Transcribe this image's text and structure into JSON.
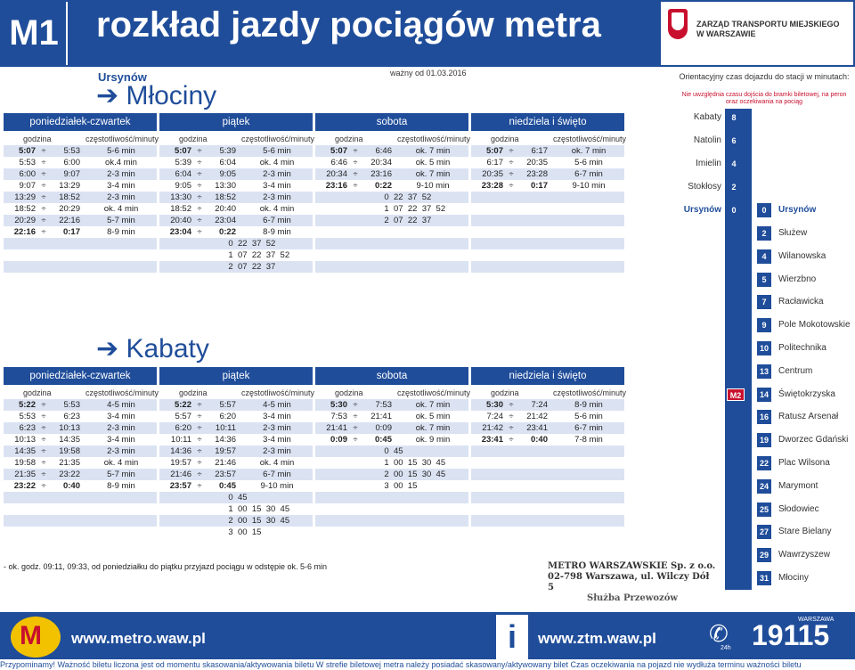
{
  "header": {
    "line": "M1",
    "title": "rozkład jazdy pociągów metra",
    "ztm_name": "ZARZĄD TRANSPORTU MIEJSKIEGO W WARSZAWIE"
  },
  "station": "Ursynów",
  "valid_from": "ważny od 01.03.2016",
  "dir1": {
    "arrow_label": "➔ Młociny",
    "cols": [
      {
        "name": "poniedziałek-czwartek",
        "sub": [
          "godzina",
          "częstotliwość/minuty"
        ],
        "rows": [
          [
            "5:07",
            "5:53",
            "5-6 min"
          ],
          [
            "5:53",
            "6:00",
            "ok.4 min"
          ],
          [
            "6:00",
            "9:07",
            "2-3 min"
          ],
          [
            "9:07",
            "13:29",
            "3-4 min"
          ],
          [
            "13:29",
            "18:52",
            "2-3 min"
          ],
          [
            "18:52",
            "20:29",
            "ok. 4 min"
          ],
          [
            "20:29",
            "22:16",
            "5-7 min"
          ],
          [
            "22:16",
            "0:17",
            "8-9 min"
          ]
        ]
      },
      {
        "name": "piątek",
        "sub": [
          "godzina",
          "częstotliwość/minuty"
        ],
        "rows": [
          [
            "5:07",
            "5:39",
            "5-6 min"
          ],
          [
            "5:39",
            "6:04",
            "ok. 4 min"
          ],
          [
            "6:04",
            "9:05",
            "2-3 min"
          ],
          [
            "9:05",
            "13:30",
            "3-4 min"
          ],
          [
            "13:30",
            "18:52",
            "2-3 min"
          ],
          [
            "18:52",
            "20:40",
            "ok. 4 min"
          ],
          [
            "20:40",
            "23:04",
            "6-7 min"
          ],
          [
            "23:04",
            "0:22",
            "8-9 min"
          ]
        ],
        "extra": [
          [
            "0",
            "22  37  52"
          ],
          [
            "1",
            "07  22  37  52"
          ],
          [
            "2",
            "07  22  37"
          ]
        ]
      },
      {
        "name": "sobota",
        "sub": [
          "godzina",
          "częstotliwość/minuty"
        ],
        "rows": [
          [
            "5:07",
            "6:46",
            "ok. 7 min"
          ],
          [
            "6:46",
            "20:34",
            "ok. 5 min"
          ],
          [
            "20:34",
            "23:16",
            "ok. 7 min"
          ],
          [
            "23:16",
            "0:22",
            "9-10 min"
          ]
        ],
        "extra": [
          [
            "0",
            "22  37  52"
          ],
          [
            "1",
            "07  22  37  52"
          ],
          [
            "2",
            "07  22  37"
          ]
        ]
      },
      {
        "name": "niedziela i święto",
        "sub": [
          "godzina",
          "częstotliwość/minuty"
        ],
        "rows": [
          [
            "5:07",
            "6:17",
            "ok. 7 min"
          ],
          [
            "6:17",
            "20:35",
            "5-6 min"
          ],
          [
            "20:35",
            "23:28",
            "6-7 min"
          ],
          [
            "23:28",
            "0:17",
            "9-10 min"
          ]
        ]
      }
    ]
  },
  "dir2": {
    "arrow_label": "➔ Kabaty",
    "cols": [
      {
        "name": "poniedziałek-czwartek",
        "sub": [
          "godzina",
          "częstotliwość/minuty"
        ],
        "rows": [
          [
            "5:22",
            "5:53",
            "4-5 min"
          ],
          [
            "5:53",
            "6:23",
            "3-4 min"
          ],
          [
            "6:23",
            "10:13",
            "2-3 min"
          ],
          [
            "10:13",
            "14:35",
            "3-4 min"
          ],
          [
            "14:35",
            "19:58",
            "2-3 min"
          ],
          [
            "19:58",
            "21:35",
            "ok. 4 min"
          ],
          [
            "21:35",
            "23:22",
            "5-7 min"
          ],
          [
            "23:22",
            "0:40",
            "8-9 min"
          ]
        ]
      },
      {
        "name": "piątek",
        "sub": [
          "godzina",
          "częstotliwość/minuty"
        ],
        "rows": [
          [
            "5:22",
            "5:57",
            "4-5 min"
          ],
          [
            "5:57",
            "6:20",
            "3-4 min"
          ],
          [
            "6:20",
            "10:11",
            "2-3 min"
          ],
          [
            "10:11",
            "14:36",
            "3-4 min"
          ],
          [
            "14:36",
            "19:57",
            "2-3 min"
          ],
          [
            "19:57",
            "21:46",
            "ok. 4 min"
          ],
          [
            "21:46",
            "23:57",
            "6-7 min"
          ],
          [
            "23:57",
            "0:45",
            "9-10 min"
          ]
        ],
        "extra": [
          [
            "0",
            "45"
          ],
          [
            "1",
            "00  15  30  45"
          ],
          [
            "2",
            "00  15  30  45"
          ],
          [
            "3",
            "00  15"
          ]
        ]
      },
      {
        "name": "sobota",
        "sub": [
          "godzina",
          "częstotliwość/minuty"
        ],
        "rows": [
          [
            "5:30",
            "7:53",
            "ok. 7 min"
          ],
          [
            "7:53",
            "21:41",
            "ok. 5 min"
          ],
          [
            "21:41",
            "0:09",
            "ok. 7 min"
          ],
          [
            "0:09",
            "0:45",
            "ok. 9 min"
          ]
        ],
        "extra": [
          [
            "0",
            "45"
          ],
          [
            "1",
            "00  15  30  45"
          ],
          [
            "2",
            "00  15  30  45"
          ],
          [
            "3",
            "00  15"
          ]
        ]
      },
      {
        "name": "niedziela i święto",
        "sub": [
          "godzina",
          "częstotliwość/minuty"
        ],
        "rows": [
          [
            "5:30",
            "7:24",
            "8-9 min"
          ],
          [
            "7:24",
            "21:42",
            "5-6 min"
          ],
          [
            "21:42",
            "23:41",
            "6-7 min"
          ],
          [
            "23:41",
            "0:40",
            "7-8 min"
          ]
        ]
      }
    ]
  },
  "note": "- ok. godz. 09:11, 09:33,  od poniedziałku do piątku przyjazd pociągu w odstępie ok. 5-6 min",
  "stamp": [
    "METRO WARSZAWSKIE Sp. z o.o.",
    "02-798 Warszawa, ul. Wilczy Dół 5",
    "Służba Przewozów"
  ],
  "legend": {
    "title": "Orientacyjny czas dojazdu do stacji w minutach:",
    "warning": "Nie uwzględnia czasu dojścia do bramki biletowej, na peron oraz oczekiwania na pociąg",
    "up": [
      [
        "Kabaty",
        "8"
      ],
      [
        "Natolin",
        "6"
      ],
      [
        "Imielin",
        "4"
      ],
      [
        "Stokłosy",
        "2"
      ]
    ],
    "current": [
      "Ursynów",
      "0",
      "0",
      "Ursynów"
    ],
    "down": [
      [
        "2",
        "Służew"
      ],
      [
        "4",
        "Wilanowska"
      ],
      [
        "5",
        "Wierzbno"
      ],
      [
        "7",
        "Racławicka"
      ],
      [
        "9",
        "Pole Mokotowskie"
      ],
      [
        "10",
        "Politechnika"
      ],
      [
        "13",
        "Centrum"
      ],
      [
        "14",
        "Świętokrzyska"
      ],
      [
        "16",
        "Ratusz Arsenał"
      ],
      [
        "19",
        "Dworzec Gdański"
      ],
      [
        "22",
        "Plac Wilsona"
      ],
      [
        "24",
        "Marymont"
      ],
      [
        "25",
        "Słodowiec"
      ],
      [
        "27",
        "Stare Bielany"
      ],
      [
        "29",
        "Wawrzyszew"
      ],
      [
        "31",
        "Młociny"
      ]
    ],
    "m2": "M2"
  },
  "footer": {
    "metro_url": "www.metro.waw.pl",
    "ztm_url": "www.ztm.waw.pl",
    "i": "i",
    "phone": "19115",
    "hotline_label": "WARSZAWA",
    "h24": "24h",
    "bottom_line": "Przypominamy! Ważność biletu liczona jest od momentu skasowania/aktywowania biletu  W strefie biletowej metra należy posiadać skasowany/aktywowany bilet  Czas oczekiwania na pojazd nie wydłuża terminu ważności biletu"
  },
  "colors": {
    "blue": "#1f4d9a",
    "alt_row": "#dbe3f3",
    "red": "#c8102e"
  }
}
